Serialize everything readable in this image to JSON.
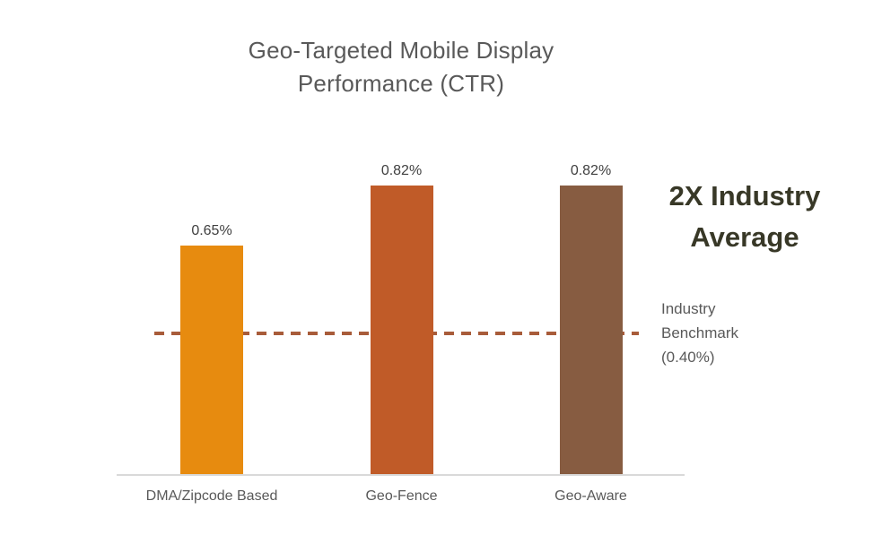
{
  "slide": {
    "title_line1": "Geo-Targeted Mobile Display",
    "title_line2": "Performance (CTR)"
  },
  "chart_data": {
    "type": "bar",
    "title": "Geo-Targeted Mobile Display Performance (CTR)",
    "categories": [
      "DMA/Zipcode Based",
      "Geo-Fence",
      "Geo-Aware"
    ],
    "values": [
      0.65,
      0.82,
      0.82
    ],
    "value_labels": [
      "0.65%",
      "0.82%",
      "0.82%"
    ],
    "unit": "percent CTR",
    "bar_colors": [
      "#e78b0f",
      "#c05b28",
      "#875c41"
    ],
    "ylim": [
      0,
      0.9
    ],
    "grid": false,
    "legend": "none",
    "benchmark": {
      "value": 0.4,
      "style": "dashed",
      "color": "#a85c3a",
      "label_line1": "Industry",
      "label_line2": "Benchmark",
      "label_line3": "(0.40%)"
    },
    "annotation": {
      "line1": "2X Industry",
      "line2": "Average"
    }
  },
  "colors": {
    "background": "#ffffff",
    "title_text": "#595959",
    "value_label_text": "#404040",
    "axis_line": "#d9d9d9",
    "category_label_text": "#595959",
    "annotation_text": "#383827",
    "benchmark_label_text": "#595959"
  }
}
